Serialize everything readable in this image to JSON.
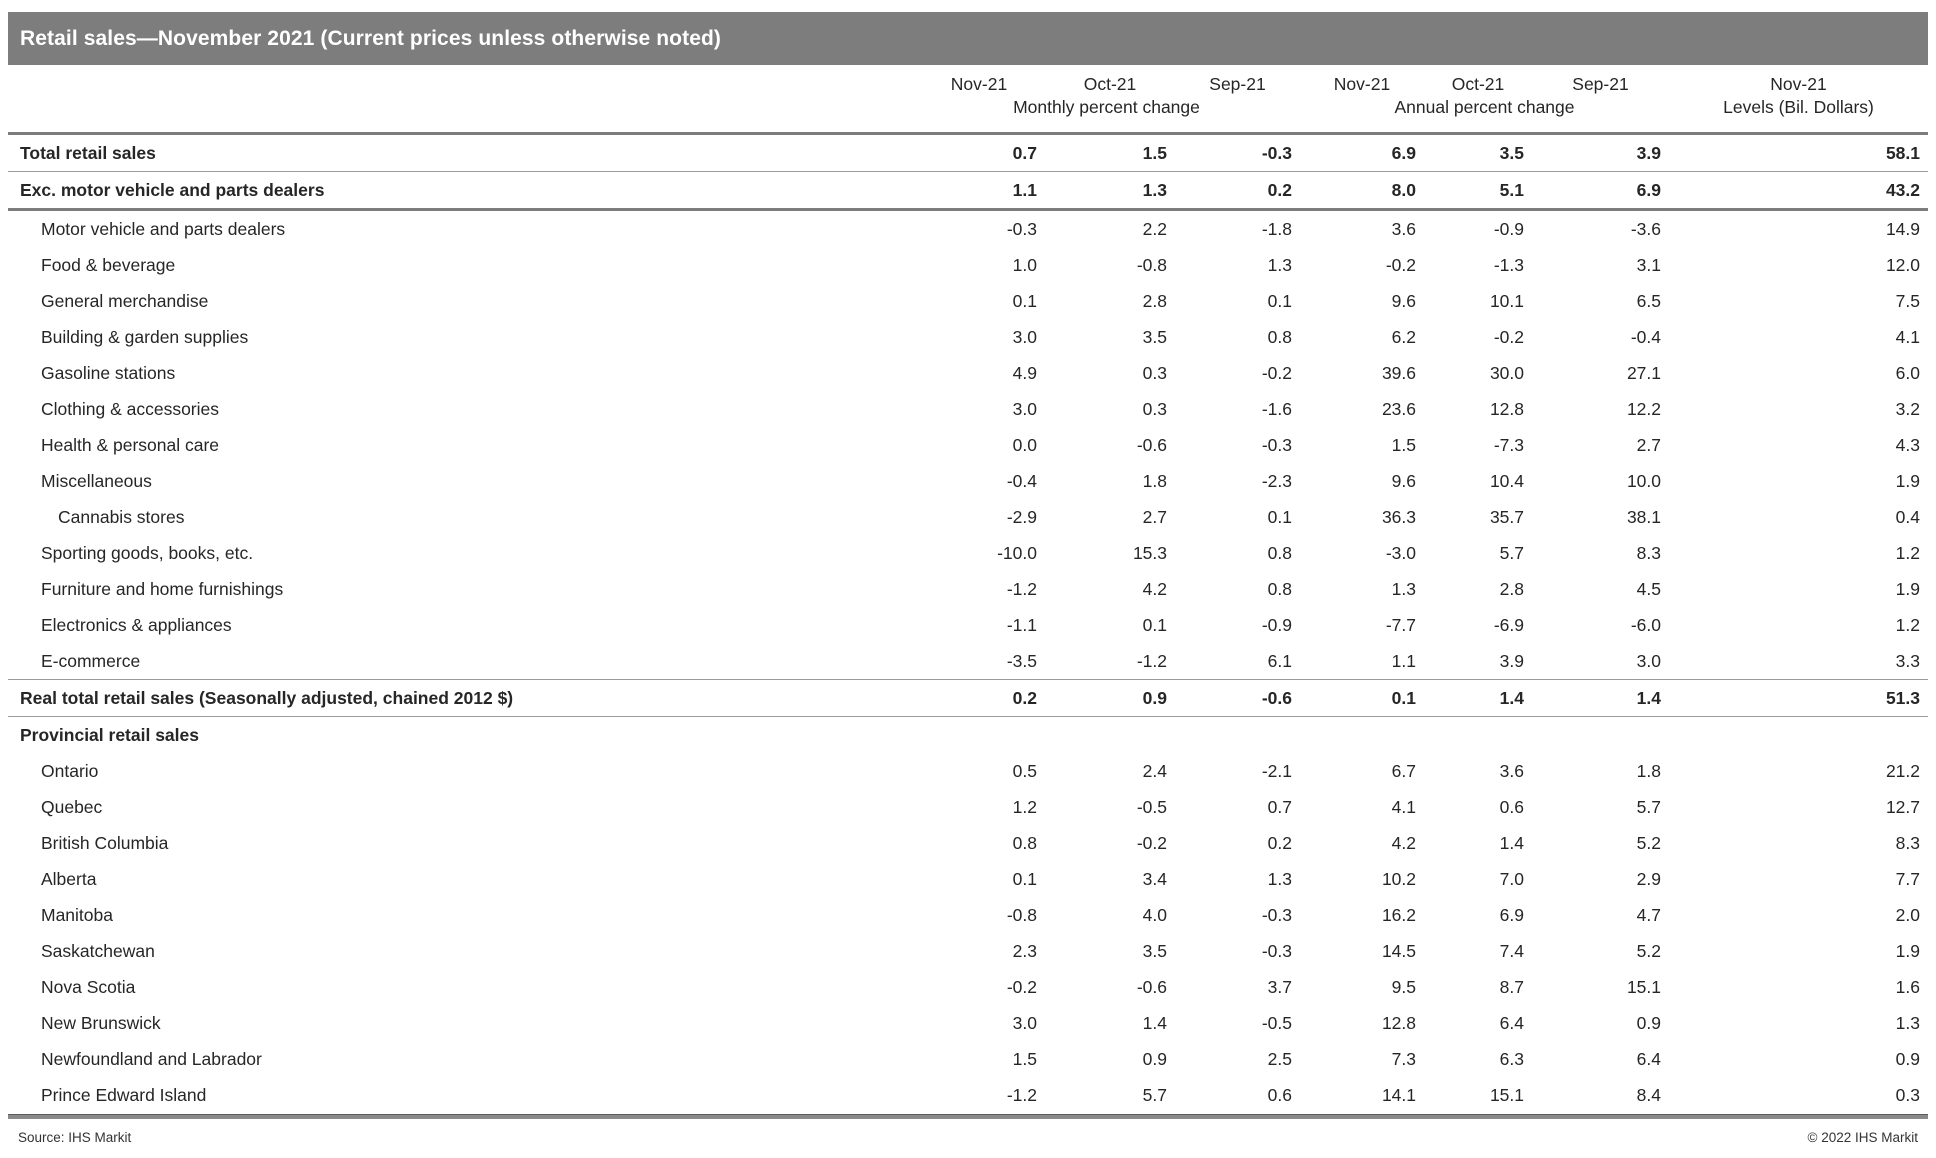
{
  "title": "Retail sales—November 2021 (Current prices unless otherwise noted)",
  "footer": {
    "source": "Source: IHS Markit",
    "copyright": "© 2022 IHS Markit"
  },
  "colors": {
    "title_bar_gray": "#7d7d7d",
    "heavy_rule_gray": "#7d7d7d",
    "light_rule_gray": "#9a9a9a",
    "text": "#262626",
    "title_text": "#ffffff"
  },
  "chart_data": {
    "type": "table",
    "title": "Retail sales—November 2021 (Current prices unless otherwise noted)",
    "column_groups": [
      {
        "label": "Monthly percent change",
        "columns": [
          "Nov-21",
          "Oct-21",
          "Sep-21"
        ]
      },
      {
        "label": "Annual percent change",
        "columns": [
          "Nov-21",
          "Oct-21",
          "Sep-21"
        ]
      },
      {
        "label": "Levels (Bil. Dollars)",
        "columns": [
          "Nov-21"
        ]
      }
    ],
    "rows": [
      {
        "label": "Total retail sales",
        "indent": 0,
        "bold": true,
        "rule_below": "thin",
        "values": [
          "0.7",
          "1.5",
          "-0.3",
          "6.9",
          "3.5",
          "3.9",
          "58.1"
        ]
      },
      {
        "label": "Exc. motor vehicle and parts dealers",
        "indent": 0,
        "bold": true,
        "rule_below": "thick",
        "values": [
          "1.1",
          "1.3",
          "0.2",
          "8.0",
          "5.1",
          "6.9",
          "43.2"
        ]
      },
      {
        "label": "Motor vehicle and parts dealers",
        "indent": 1,
        "bold": false,
        "rule_below": "none",
        "values": [
          "-0.3",
          "2.2",
          "-1.8",
          "3.6",
          "-0.9",
          "-3.6",
          "14.9"
        ]
      },
      {
        "label": "Food & beverage",
        "indent": 1,
        "bold": false,
        "rule_below": "none",
        "values": [
          "1.0",
          "-0.8",
          "1.3",
          "-0.2",
          "-1.3",
          "3.1",
          "12.0"
        ]
      },
      {
        "label": "General merchandise",
        "indent": 1,
        "bold": false,
        "rule_below": "none",
        "values": [
          "0.1",
          "2.8",
          "0.1",
          "9.6",
          "10.1",
          "6.5",
          "7.5"
        ]
      },
      {
        "label": "Building & garden supplies",
        "indent": 1,
        "bold": false,
        "rule_below": "none",
        "values": [
          "3.0",
          "3.5",
          "0.8",
          "6.2",
          "-0.2",
          "-0.4",
          "4.1"
        ]
      },
      {
        "label": "Gasoline stations",
        "indent": 1,
        "bold": false,
        "rule_below": "none",
        "values": [
          "4.9",
          "0.3",
          "-0.2",
          "39.6",
          "30.0",
          "27.1",
          "6.0"
        ]
      },
      {
        "label": "Clothing & accessories",
        "indent": 1,
        "bold": false,
        "rule_below": "none",
        "values": [
          "3.0",
          "0.3",
          "-1.6",
          "23.6",
          "12.8",
          "12.2",
          "3.2"
        ]
      },
      {
        "label": "Health & personal care",
        "indent": 1,
        "bold": false,
        "rule_below": "none",
        "values": [
          "0.0",
          "-0.6",
          "-0.3",
          "1.5",
          "-7.3",
          "2.7",
          "4.3"
        ]
      },
      {
        "label": "Miscellaneous",
        "indent": 1,
        "bold": false,
        "rule_below": "none",
        "values": [
          "-0.4",
          "1.8",
          "-2.3",
          "9.6",
          "10.4",
          "10.0",
          "1.9"
        ]
      },
      {
        "label": "Cannabis stores",
        "indent": 2,
        "bold": false,
        "rule_below": "none",
        "values": [
          "-2.9",
          "2.7",
          "0.1",
          "36.3",
          "35.7",
          "38.1",
          "0.4"
        ]
      },
      {
        "label": "Sporting goods, books, etc.",
        "indent": 1,
        "bold": false,
        "rule_below": "none",
        "values": [
          "-10.0",
          "15.3",
          "0.8",
          "-3.0",
          "5.7",
          "8.3",
          "1.2"
        ]
      },
      {
        "label": "Furniture and home furnishings",
        "indent": 1,
        "bold": false,
        "rule_below": "none",
        "values": [
          "-1.2",
          "4.2",
          "0.8",
          "1.3",
          "2.8",
          "4.5",
          "1.9"
        ]
      },
      {
        "label": "Electronics & appliances",
        "indent": 1,
        "bold": false,
        "rule_below": "none",
        "values": [
          "-1.1",
          "0.1",
          "-0.9",
          "-7.7",
          "-6.9",
          "-6.0",
          "1.2"
        ]
      },
      {
        "label": "E-commerce",
        "indent": 1,
        "bold": false,
        "rule_below": "thin",
        "values": [
          "-3.5",
          "-1.2",
          "6.1",
          "1.1",
          "3.9",
          "3.0",
          "3.3"
        ]
      },
      {
        "label": "Real total retail sales (Seasonally adjusted, chained 2012 $)",
        "indent": 0,
        "bold": true,
        "rule_below": "thin",
        "values": [
          "0.2",
          "0.9",
          "-0.6",
          "0.1",
          "1.4",
          "1.4",
          "51.3"
        ]
      },
      {
        "label": "Provincial retail sales",
        "indent": 0,
        "bold": true,
        "rule_below": "none",
        "values": [
          "",
          "",
          "",
          "",
          "",
          "",
          ""
        ]
      },
      {
        "label": "Ontario",
        "indent": 1,
        "bold": false,
        "rule_below": "none",
        "values": [
          "0.5",
          "2.4",
          "-2.1",
          "6.7",
          "3.6",
          "1.8",
          "21.2"
        ]
      },
      {
        "label": "Quebec",
        "indent": 1,
        "bold": false,
        "rule_below": "none",
        "values": [
          "1.2",
          "-0.5",
          "0.7",
          "4.1",
          "0.6",
          "5.7",
          "12.7"
        ]
      },
      {
        "label": "British Columbia",
        "indent": 1,
        "bold": false,
        "rule_below": "none",
        "values": [
          "0.8",
          "-0.2",
          "0.2",
          "4.2",
          "1.4",
          "5.2",
          "8.3"
        ]
      },
      {
        "label": "Alberta",
        "indent": 1,
        "bold": false,
        "rule_below": "none",
        "values": [
          "0.1",
          "3.4",
          "1.3",
          "10.2",
          "7.0",
          "2.9",
          "7.7"
        ]
      },
      {
        "label": "Manitoba",
        "indent": 1,
        "bold": false,
        "rule_below": "none",
        "values": [
          "-0.8",
          "4.0",
          "-0.3",
          "16.2",
          "6.9",
          "4.7",
          "2.0"
        ]
      },
      {
        "label": "Saskatchewan",
        "indent": 1,
        "bold": false,
        "rule_below": "none",
        "values": [
          "2.3",
          "3.5",
          "-0.3",
          "14.5",
          "7.4",
          "5.2",
          "1.9"
        ]
      },
      {
        "label": "Nova Scotia",
        "indent": 1,
        "bold": false,
        "rule_below": "none",
        "values": [
          "-0.2",
          "-0.6",
          "3.7",
          "9.5",
          "8.7",
          "15.1",
          "1.6"
        ]
      },
      {
        "label": "New Brunswick",
        "indent": 1,
        "bold": false,
        "rule_below": "none",
        "values": [
          "3.0",
          "1.4",
          "-0.5",
          "12.8",
          "6.4",
          "0.9",
          "1.3"
        ]
      },
      {
        "label": "Newfoundland and Labrador",
        "indent": 1,
        "bold": false,
        "rule_below": "none",
        "values": [
          "1.5",
          "0.9",
          "2.5",
          "7.3",
          "6.3",
          "6.4",
          "0.9"
        ]
      },
      {
        "label": "Prince Edward Island",
        "indent": 1,
        "bold": false,
        "rule_below": "none",
        "values": [
          "-1.2",
          "5.7",
          "0.6",
          "14.1",
          "15.1",
          "8.4",
          "0.3"
        ]
      }
    ]
  }
}
